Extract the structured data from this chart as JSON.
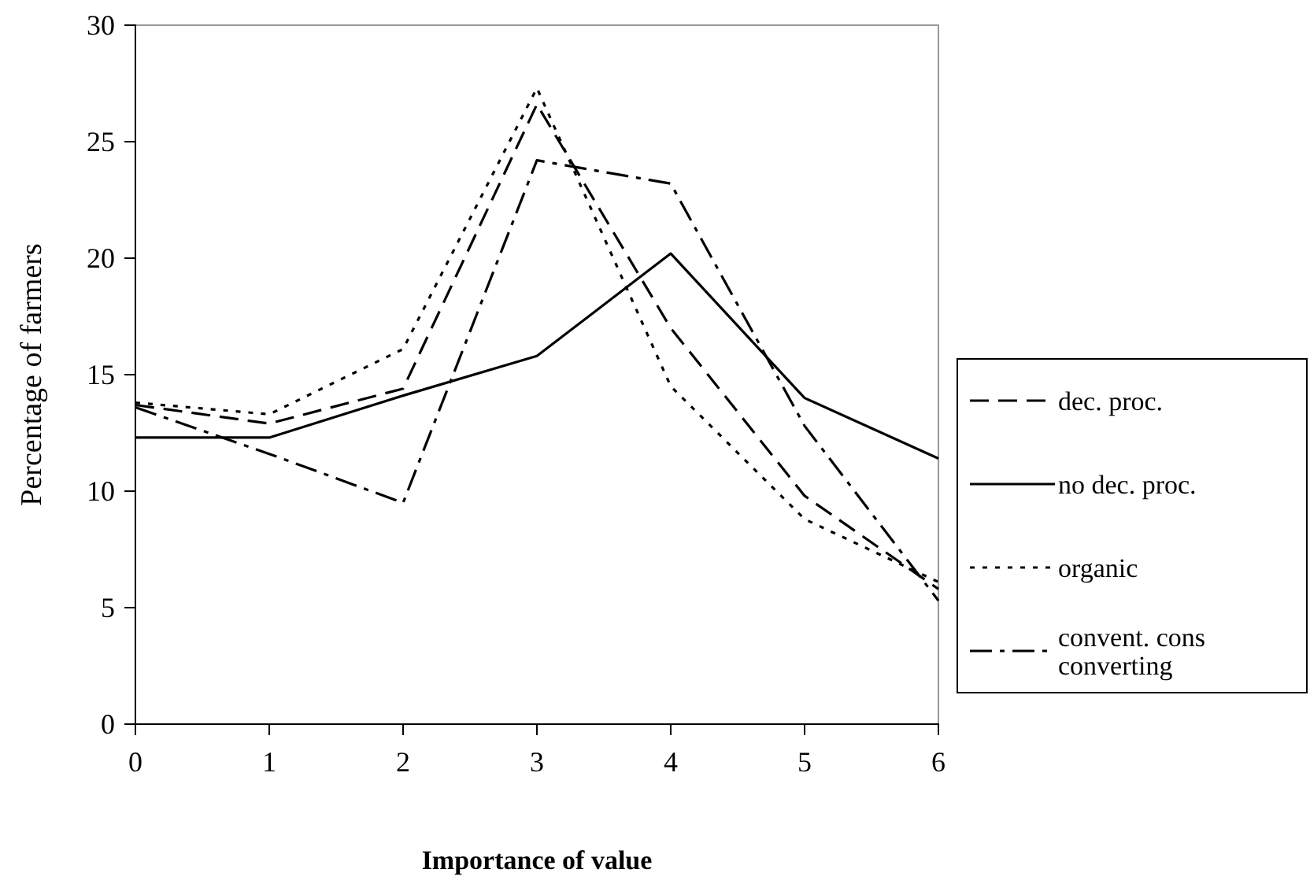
{
  "chart_data": {
    "type": "line",
    "xlabel": "Importance of value",
    "ylabel": "Percentage of farmers",
    "x": [
      0,
      1,
      2,
      3,
      4,
      5,
      6
    ],
    "xlim": [
      0,
      6
    ],
    "xticks": [
      0,
      1,
      2,
      3,
      4,
      5,
      6
    ],
    "ylim": [
      0,
      30
    ],
    "yticks": [
      0,
      5,
      10,
      15,
      20,
      25,
      30
    ],
    "grid": false,
    "legend": "right",
    "marker": "none",
    "series": [
      {
        "name": "dec. proc.",
        "color": "#000000",
        "line_style": "dashed",
        "values": [
          13.7,
          12.9,
          14.4,
          26.6,
          17,
          9.8,
          5.8
        ]
      },
      {
        "name": "no dec. proc.",
        "color": "#000000",
        "line_style": "solid",
        "values": [
          12.3,
          12.3,
          14.1,
          15.8,
          20.2,
          14,
          11.4
        ]
      },
      {
        "name": "organic",
        "color": "#000000",
        "line_style": "dotted",
        "values": [
          13.8,
          13.3,
          16.1,
          27.3,
          14.5,
          8.8,
          6.1
        ]
      },
      {
        "name": "convent. cons converting",
        "color": "#000000",
        "line_style": "dashdot",
        "values": [
          13.6,
          11.6,
          9.5,
          24.2,
          23.2,
          12.8,
          5.3
        ]
      }
    ]
  }
}
